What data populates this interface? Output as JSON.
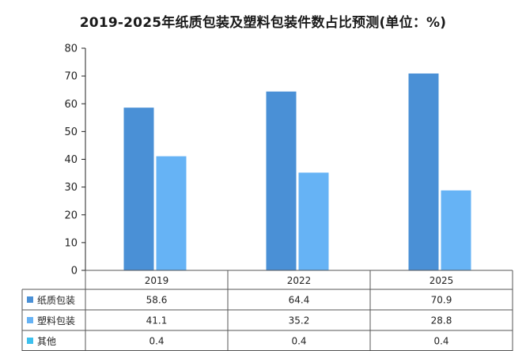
{
  "chart_data": {
    "type": "bar",
    "title": "2019-2025年纸质包装及塑料包装件数占比预测(单位：%)",
    "categories": [
      "2019",
      "2022",
      "2025"
    ],
    "series": [
      {
        "name": "纸质包装",
        "values": [
          58.6,
          64.4,
          70.9
        ],
        "color": "#4a90d6"
      },
      {
        "name": "塑料包装",
        "values": [
          41.1,
          35.2,
          28.8
        ],
        "color": "#66b3f5"
      },
      {
        "name": "其他",
        "values": [
          0.4,
          0.4,
          0.4
        ],
        "color": "#3cc0ee"
      }
    ],
    "ylim": [
      0,
      80
    ],
    "yticks": [
      0,
      10,
      20,
      30,
      40,
      50,
      60,
      70,
      80
    ],
    "grid": false,
    "legend": "data-table"
  }
}
